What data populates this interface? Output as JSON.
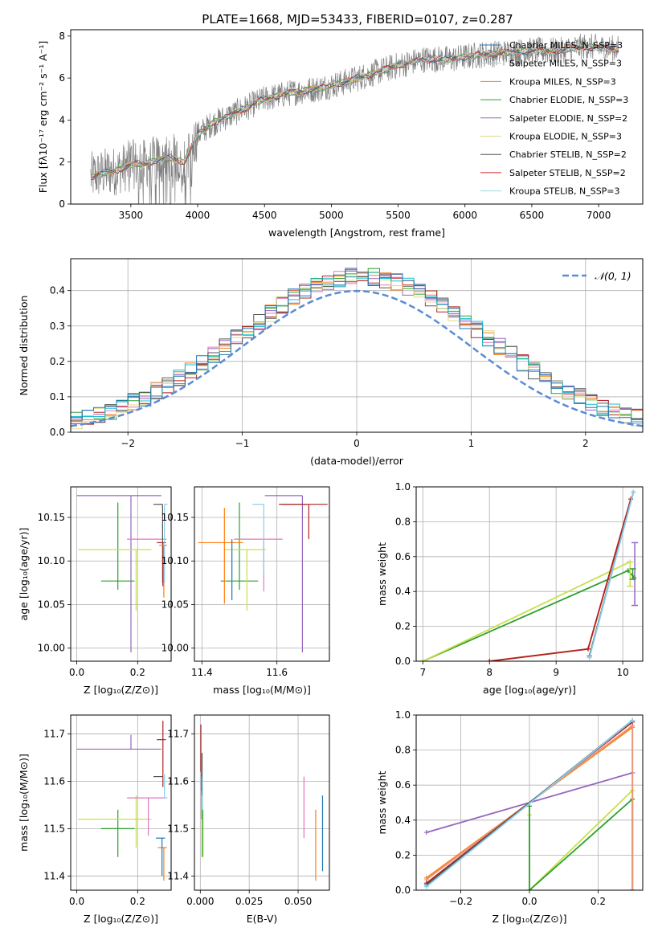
{
  "figure": {
    "title": "PLATE=1668, MJD=53433, FIBERID=0107, z=0.287"
  },
  "chart_data": [
    {
      "type": "line",
      "id": "spectrum",
      "xlabel": "wavelength [Angstrom, rest frame]",
      "ylabel": "Flux [fλ10⁻¹⁷ erg cm⁻² s⁻¹ A⁻¹]",
      "xlim": [
        3050,
        7330
      ],
      "ylim": [
        0,
        8.3
      ],
      "xticks": [
        3500,
        4000,
        4500,
        5000,
        5500,
        6000,
        6500,
        7000
      ],
      "yticks": [
        0,
        2,
        4,
        6,
        8
      ],
      "grid": false,
      "legend_position": "top-right",
      "data_trend": {
        "x": [
          3200,
          3300,
          3400,
          3500,
          3600,
          3700,
          3800,
          3900,
          4000,
          4100,
          4300,
          4500,
          4700,
          4900,
          5100,
          5300,
          5500,
          5700,
          5900,
          6100,
          6300,
          6500,
          6700,
          6900,
          7100
        ],
        "y": [
          1.3,
          1.5,
          1.6,
          1.9,
          1.9,
          2.1,
          2.2,
          2.0,
          3.3,
          3.8,
          4.4,
          5.0,
          5.3,
          5.5,
          5.8,
          6.2,
          6.6,
          6.9,
          6.9,
          7.1,
          7.2,
          7.3,
          7.3,
          7.5,
          7.4
        ]
      },
      "series": [
        {
          "name": "Chabrier MILES, N_SSP=3",
          "color": "#1f77b4"
        },
        {
          "name": "Salpeter MILES, N_SSP=3",
          "color": "#aec7e8"
        },
        {
          "name": "Kroupa MILES, N_SSP=3",
          "color": "#ff7f0e"
        },
        {
          "name": "Chabrier ELODIE, N_SSP=3",
          "color": "#2ca02c"
        },
        {
          "name": "Salpeter ELODIE, N_SSP=2",
          "color": "#9467bd"
        },
        {
          "name": "Kroupa ELODIE, N_SSP=3",
          "color": "#dbdb8d"
        },
        {
          "name": "Chabrier STELIB, N_SSP=2",
          "color": "#555555"
        },
        {
          "name": "Salpeter STELIB, N_SSP=2",
          "color": "#d62728"
        },
        {
          "name": "Kroupa STELIB, N_SSP=3",
          "color": "#9edae5"
        }
      ]
    },
    {
      "type": "line",
      "id": "residuals",
      "xlabel": "(data-model)/error",
      "ylabel": "Normed distribution",
      "xlim": [
        -2.5,
        2.5
      ],
      "ylim": [
        0,
        0.49
      ],
      "xticks": [
        -2,
        -1,
        0,
        1,
        2
      ],
      "yticks": [
        0.0,
        0.1,
        0.2,
        0.3,
        0.4
      ],
      "grid": true,
      "legend": "𝒩(0, 1)",
      "legend_position": "top-right",
      "gaussian": {
        "mean": 0,
        "sigma": 1,
        "color": "#5b8bd6"
      },
      "hist_bin_width": 0.1,
      "hist_colors": [
        "#2ca02c",
        "#9467bd",
        "#e377c2",
        "#555555",
        "#ff7f0e",
        "#b22222",
        "#dbdb8d",
        "#17becf",
        "#1f77b4"
      ]
    },
    {
      "type": "scatter",
      "id": "age_vs_Z",
      "xlabel": "Z [log₁₀(Z/Z⊙)]",
      "ylabel": "age  [log₁₀(age/yr)]",
      "xlim": [
        -0.02,
        0.31
      ],
      "ylim": [
        9.985,
        10.185
      ],
      "xticks": [
        0.0,
        0.2
      ],
      "yticks": [
        10.0,
        10.05,
        10.1,
        10.15
      ],
      "grid": true,
      "points": [
        {
          "x": 0.178,
          "y": 10.175,
          "xerr_lo": 0.178,
          "xerr_hi": 0.1,
          "yerr_lo": 0.18,
          "yerr_hi": 0.0,
          "color": "#9467bd"
        },
        {
          "x": 0.135,
          "y": 10.077,
          "xerr_lo": 0.055,
          "xerr_hi": 0.055,
          "yerr_lo": 0.01,
          "yerr_hi": 0.09,
          "color": "#2ca02c"
        },
        {
          "x": 0.195,
          "y": 10.113,
          "xerr_lo": 0.19,
          "xerr_hi": 0.05,
          "yerr_lo": 0.07,
          "yerr_hi": 0.0,
          "color": "#c8e04a"
        },
        {
          "x": 0.235,
          "y": 10.125,
          "xerr_lo": 0.07,
          "xerr_hi": 0.06,
          "yerr_lo": 0.0,
          "yerr_hi": 0.0,
          "color": "#e377c2"
        },
        {
          "x": 0.282,
          "y": 10.165,
          "xerr_lo": 0.03,
          "xerr_hi": 0.0,
          "yerr_lo": 0.09,
          "yerr_hi": 0.0,
          "color": "#555555"
        },
        {
          "x": 0.283,
          "y": 10.121,
          "xerr_lo": 0.02,
          "xerr_hi": 0.01,
          "yerr_lo": 0.05,
          "yerr_hi": 0.0,
          "color": "#b22222"
        },
        {
          "x": 0.286,
          "y": 10.118,
          "xerr_lo": 0.015,
          "xerr_hi": 0.01,
          "yerr_lo": 0.06,
          "yerr_hi": 0.0,
          "color": "#ff7f0e"
        },
        {
          "x": 0.288,
          "y": 10.165,
          "xerr_lo": 0.0,
          "xerr_hi": 0.01,
          "yerr_lo": 0.09,
          "yerr_hi": 0.0,
          "color": "#87ceeb"
        }
      ]
    },
    {
      "type": "scatter",
      "id": "age_vs_mass",
      "xlabel": "mass [log₁₀(M/M⊙)]",
      "ylabel": "",
      "xlim": [
        11.38,
        11.74
      ],
      "ylim": [
        9.985,
        10.185
      ],
      "xticks": [
        11.4,
        11.6
      ],
      "yticks": [
        10.0,
        10.05,
        10.1,
        10.15
      ],
      "grid": true,
      "points": [
        {
          "x": 11.668,
          "y": 10.175,
          "xerr_lo": 0.1,
          "xerr_hi": 0.0,
          "yerr_lo": 0.18,
          "yerr_hi": 0.0,
          "color": "#9467bd"
        },
        {
          "x": 11.5,
          "y": 10.077,
          "xerr_lo": 0.05,
          "xerr_hi": 0.05,
          "yerr_lo": 0.01,
          "yerr_hi": 0.09,
          "color": "#2ca02c"
        },
        {
          "x": 11.52,
          "y": 10.113,
          "xerr_lo": 0.06,
          "xerr_hi": 0.05,
          "yerr_lo": 0.07,
          "yerr_hi": 0.0,
          "color": "#c8e04a"
        },
        {
          "x": 11.565,
          "y": 10.125,
          "xerr_lo": 0.08,
          "xerr_hi": 0.05,
          "yerr_lo": 0.06,
          "yerr_hi": 0.0,
          "color": "#e377c2"
        },
        {
          "x": 11.46,
          "y": 10.121,
          "xerr_lo": 0.07,
          "xerr_hi": 0.05,
          "yerr_lo": 0.07,
          "yerr_hi": 0.04,
          "color": "#ff7f0e"
        },
        {
          "x": 11.61,
          "y": 10.165,
          "xerr_lo": 0.0,
          "xerr_hi": 0.07,
          "yerr_lo": 0.0,
          "yerr_hi": 0.0,
          "color": "#555555"
        },
        {
          "x": 11.685,
          "y": 10.165,
          "xerr_lo": 0.08,
          "xerr_hi": 0.05,
          "yerr_lo": 0.04,
          "yerr_hi": 0.0,
          "color": "#b22222"
        },
        {
          "x": 11.565,
          "y": 10.165,
          "xerr_lo": 0.03,
          "xerr_hi": 0.0,
          "yerr_lo": 0.08,
          "yerr_hi": 0.0,
          "color": "#87ceeb"
        },
        {
          "x": 11.48,
          "y": 10.125,
          "xerr_lo": 0.0,
          "xerr_hi": 0.0,
          "yerr_lo": 0.07,
          "yerr_hi": 0.0,
          "color": "#1f77b4"
        }
      ]
    },
    {
      "type": "line",
      "id": "weight_vs_age",
      "xlabel": "age  [log₁₀(age/yr)]",
      "ylabel": "mass weight",
      "xlim": [
        6.9,
        10.3
      ],
      "ylim": [
        0,
        1.0
      ],
      "xticks": [
        7,
        8,
        9,
        10
      ],
      "yticks": [
        0.0,
        0.2,
        0.4,
        0.6,
        0.8,
        1.0
      ],
      "grid": true,
      "series": [
        {
          "color": "#2ca02c",
          "x": [
            7.0,
            10.08,
            10.17
          ],
          "y": [
            0.0,
            0.52,
            0.48
          ]
        },
        {
          "color": "#c8e04a",
          "x": [
            7.0,
            10.11
          ],
          "y": [
            0.0,
            0.57
          ]
        },
        {
          "color": "#ff7f0e",
          "x": [
            8.0,
            9.48,
            10.12
          ],
          "y": [
            0.0,
            0.07,
            0.93
          ]
        },
        {
          "color": "#b22222",
          "x": [
            8.0,
            9.48,
            10.12
          ],
          "y": [
            0.0,
            0.07,
            0.93
          ]
        },
        {
          "color": "#555555",
          "x": [
            9.5,
            10.16
          ],
          "y": [
            0.03,
            0.97
          ]
        },
        {
          "color": "#87ceeb",
          "x": [
            9.5,
            10.16
          ],
          "y": [
            0.02,
            0.97
          ]
        }
      ],
      "errorbars": [
        {
          "x": 10.18,
          "y": 0.5,
          "lo": 0.32,
          "hi": 0.68,
          "color": "#9467bd"
        },
        {
          "x": 10.11,
          "y": 0.5,
          "lo": 0.43,
          "hi": 0.57,
          "color": "#c8e04a"
        },
        {
          "x": 10.15,
          "y": 0.5,
          "lo": 0.47,
          "hi": 0.53,
          "color": "#2ca02c"
        }
      ]
    },
    {
      "type": "scatter",
      "id": "mass_vs_Z",
      "xlabel": "Z [log₁₀(Z/Z⊙)]",
      "ylabel": "mass [log₁₀(M/M⊙)]",
      "xlim": [
        -0.02,
        0.31
      ],
      "ylim": [
        11.37,
        11.74
      ],
      "xticks": [
        0.0,
        0.2
      ],
      "yticks": [
        11.4,
        11.5,
        11.6,
        11.7
      ],
      "grid": true,
      "points": [
        {
          "x": 0.178,
          "y": 11.668,
          "xerr_lo": 0.178,
          "xerr_hi": 0.1,
          "yerr_lo": 0.0,
          "yerr_hi": 0.03,
          "color": "#9467bd"
        },
        {
          "x": 0.135,
          "y": 11.5,
          "xerr_lo": 0.055,
          "xerr_hi": 0.055,
          "yerr_lo": 0.06,
          "yerr_hi": 0.04,
          "color": "#2ca02c"
        },
        {
          "x": 0.195,
          "y": 11.52,
          "xerr_lo": 0.19,
          "xerr_hi": 0.05,
          "yerr_lo": 0.06,
          "yerr_hi": 0.05,
          "color": "#c8e04a"
        },
        {
          "x": 0.235,
          "y": 11.565,
          "xerr_lo": 0.07,
          "xerr_hi": 0.06,
          "yerr_lo": 0.08,
          "yerr_hi": 0.0,
          "color": "#e377c2"
        },
        {
          "x": 0.282,
          "y": 11.61,
          "xerr_lo": 0.03,
          "xerr_hi": 0.0,
          "yerr_lo": 0.0,
          "yerr_hi": 0.0,
          "color": "#555555"
        },
        {
          "x": 0.283,
          "y": 11.688,
          "xerr_lo": 0.02,
          "xerr_hi": 0.01,
          "yerr_lo": 0.1,
          "yerr_hi": 0.04,
          "color": "#b22222"
        },
        {
          "x": 0.286,
          "y": 11.46,
          "xerr_lo": 0.02,
          "xerr_hi": 0.01,
          "yerr_lo": 0.07,
          "yerr_hi": 0.0,
          "color": "#ff7f0e"
        },
        {
          "x": 0.288,
          "y": 11.565,
          "xerr_lo": 0.0,
          "xerr_hi": 0.01,
          "yerr_lo": 0.0,
          "yerr_hi": 0.05,
          "color": "#87ceeb"
        },
        {
          "x": 0.28,
          "y": 11.48,
          "xerr_lo": 0.02,
          "xerr_hi": 0.01,
          "yerr_lo": 0.08,
          "yerr_hi": 0.0,
          "color": "#1f77b4"
        }
      ]
    },
    {
      "type": "scatter",
      "id": "mass_vs_EBV",
      "xlabel": "E(B-V)",
      "ylabel": "",
      "xlim": [
        -0.003,
        0.066
      ],
      "ylim": [
        11.37,
        11.74
      ],
      "xticks": [
        0.0,
        0.025,
        0.05
      ],
      "yticks": [
        11.4,
        11.5,
        11.6,
        11.7
      ],
      "grid": true,
      "points": [
        {
          "x": 0.0003,
          "y": 11.67,
          "yerr_lo": 0.05,
          "yerr_hi": 0.05,
          "color": "#b22222"
        },
        {
          "x": 0.0005,
          "y": 11.58,
          "yerr_lo": 0.06,
          "yerr_hi": 0.04,
          "color": "#9467bd"
        },
        {
          "x": 0.0007,
          "y": 11.52,
          "yerr_lo": 0.08,
          "yerr_hi": 0.06,
          "color": "#c8e04a"
        },
        {
          "x": 0.0009,
          "y": 11.62,
          "yerr_lo": 0.05,
          "yerr_hi": 0.04,
          "color": "#555555"
        },
        {
          "x": 0.0011,
          "y": 11.56,
          "yerr_lo": 0.04,
          "yerr_hi": 0.05,
          "color": "#87ceeb"
        },
        {
          "x": 0.0013,
          "y": 11.5,
          "yerr_lo": 0.06,
          "yerr_hi": 0.04,
          "color": "#2ca02c"
        },
        {
          "x": 0.053,
          "y": 11.545,
          "yerr_lo": 0.065,
          "yerr_hi": 0.065,
          "color": "#e377c2"
        },
        {
          "x": 0.059,
          "y": 11.46,
          "yerr_lo": 0.07,
          "yerr_hi": 0.08,
          "color": "#ff7f0e"
        },
        {
          "x": 0.0625,
          "y": 11.49,
          "yerr_lo": 0.08,
          "yerr_hi": 0.08,
          "color": "#1f77b4"
        }
      ]
    },
    {
      "type": "line",
      "id": "weight_vs_Z",
      "xlabel": "Z [log₁₀(Z/Z⊙)]",
      "ylabel": "mass weight",
      "xlim": [
        -0.33,
        0.33
      ],
      "ylim": [
        0,
        1.0
      ],
      "xticks": [
        -0.2,
        0.0,
        0.2
      ],
      "yticks": [
        0.0,
        0.2,
        0.4,
        0.6,
        0.8,
        1.0
      ],
      "grid": true,
      "series": [
        {
          "color": "#9467bd",
          "x": [
            -0.3,
            0.3
          ],
          "y": [
            0.33,
            0.67
          ]
        },
        {
          "color": "#c8e04a",
          "x": [
            0.0,
            0.0,
            0.3,
            0.3
          ],
          "y": [
            0.43,
            0.0,
            0.57,
            0.0
          ]
        },
        {
          "color": "#2ca02c",
          "x": [
            0.0,
            0.0,
            0.3,
            0.3
          ],
          "y": [
            0.48,
            0.0,
            0.52,
            0.0
          ]
        },
        {
          "color": "#ff7f0e",
          "x": [
            -0.3,
            0.3,
            0.3
          ],
          "y": [
            0.07,
            0.93,
            0.0
          ]
        },
        {
          "color": "#e9967a",
          "x": [
            -0.3,
            0.3,
            0.3
          ],
          "y": [
            0.06,
            0.94,
            0.0
          ]
        },
        {
          "color": "#b22222",
          "x": [
            -0.3,
            0.3
          ],
          "y": [
            0.04,
            0.96
          ]
        },
        {
          "color": "#555555",
          "x": [
            -0.3,
            0.3
          ],
          "y": [
            0.03,
            0.97
          ]
        },
        {
          "color": "#87ceeb",
          "x": [
            -0.3,
            0.3
          ],
          "y": [
            0.02,
            0.97
          ]
        }
      ]
    }
  ]
}
